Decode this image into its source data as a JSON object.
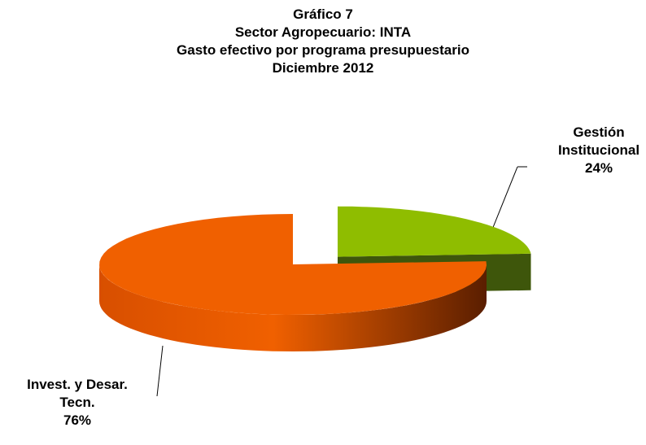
{
  "chart_data": {
    "type": "pie",
    "is_3d": true,
    "title_lines": [
      "Gráfico 7",
      "Sector Agropecuario: INTA",
      "Gasto efectivo por programa presupuestario",
      "Diciembre 2012"
    ],
    "categories": [
      "Gestión Institucional",
      "Invest. y Desar. Tecn."
    ],
    "values": [
      24,
      76
    ],
    "value_labels": [
      "24%",
      "76%"
    ],
    "colors": [
      "#8fbd00",
      "#f06000"
    ],
    "side_colors": [
      "#3e560b",
      "#7a2a00"
    ],
    "exploded": [
      true,
      false
    ]
  }
}
